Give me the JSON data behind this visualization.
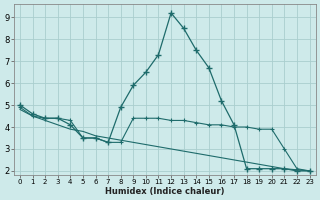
{
  "xlabel": "Humidex (Indice chaleur)",
  "bg_color": "#ceeaea",
  "grid_color": "#aacece",
  "line_color": "#1e6b6b",
  "xlim": [
    -0.5,
    23.5
  ],
  "ylim": [
    1.8,
    9.6
  ],
  "xticks": [
    0,
    1,
    2,
    3,
    4,
    5,
    6,
    7,
    8,
    9,
    10,
    11,
    12,
    13,
    14,
    15,
    16,
    17,
    18,
    19,
    20,
    21,
    22,
    23
  ],
  "yticks": [
    2,
    3,
    4,
    5,
    6,
    7,
    8,
    9
  ],
  "s1_x": [
    0,
    1,
    2,
    3,
    4,
    5,
    6,
    7,
    8,
    9,
    10,
    11,
    12,
    13,
    14,
    15,
    16,
    17,
    18,
    19,
    20,
    21,
    22,
    23
  ],
  "s1_y": [
    5.0,
    4.6,
    4.4,
    4.4,
    4.1,
    3.5,
    3.5,
    3.3,
    4.9,
    5.9,
    6.5,
    7.3,
    9.2,
    8.5,
    7.5,
    6.7,
    5.2,
    4.1,
    2.1,
    2.1,
    2.1,
    2.1,
    2.0,
    2.0
  ],
  "s2_x": [
    0,
    1,
    2,
    3,
    4,
    5,
    6,
    7,
    8,
    9,
    10,
    11,
    12,
    13,
    14,
    15,
    16,
    17,
    18,
    19,
    20,
    21,
    22,
    23
  ],
  "s2_y": [
    4.9,
    4.5,
    4.4,
    4.4,
    4.3,
    3.5,
    3.5,
    3.3,
    3.3,
    4.4,
    4.4,
    4.4,
    4.3,
    4.3,
    4.2,
    4.1,
    4.1,
    4.0,
    4.0,
    3.9,
    3.9,
    3.0,
    2.1,
    2.0
  ],
  "s3_x": [
    0,
    1,
    2,
    3,
    4,
    5,
    6,
    7,
    8,
    9,
    10,
    11,
    12,
    13,
    14,
    15,
    16,
    17,
    18,
    19,
    20,
    21,
    22,
    23
  ],
  "s3_y": [
    4.8,
    4.5,
    4.3,
    4.1,
    3.9,
    3.8,
    3.6,
    3.5,
    3.4,
    3.3,
    3.2,
    3.1,
    3.0,
    2.9,
    2.8,
    2.7,
    2.6,
    2.5,
    2.4,
    2.3,
    2.2,
    2.1,
    2.05,
    2.0
  ]
}
